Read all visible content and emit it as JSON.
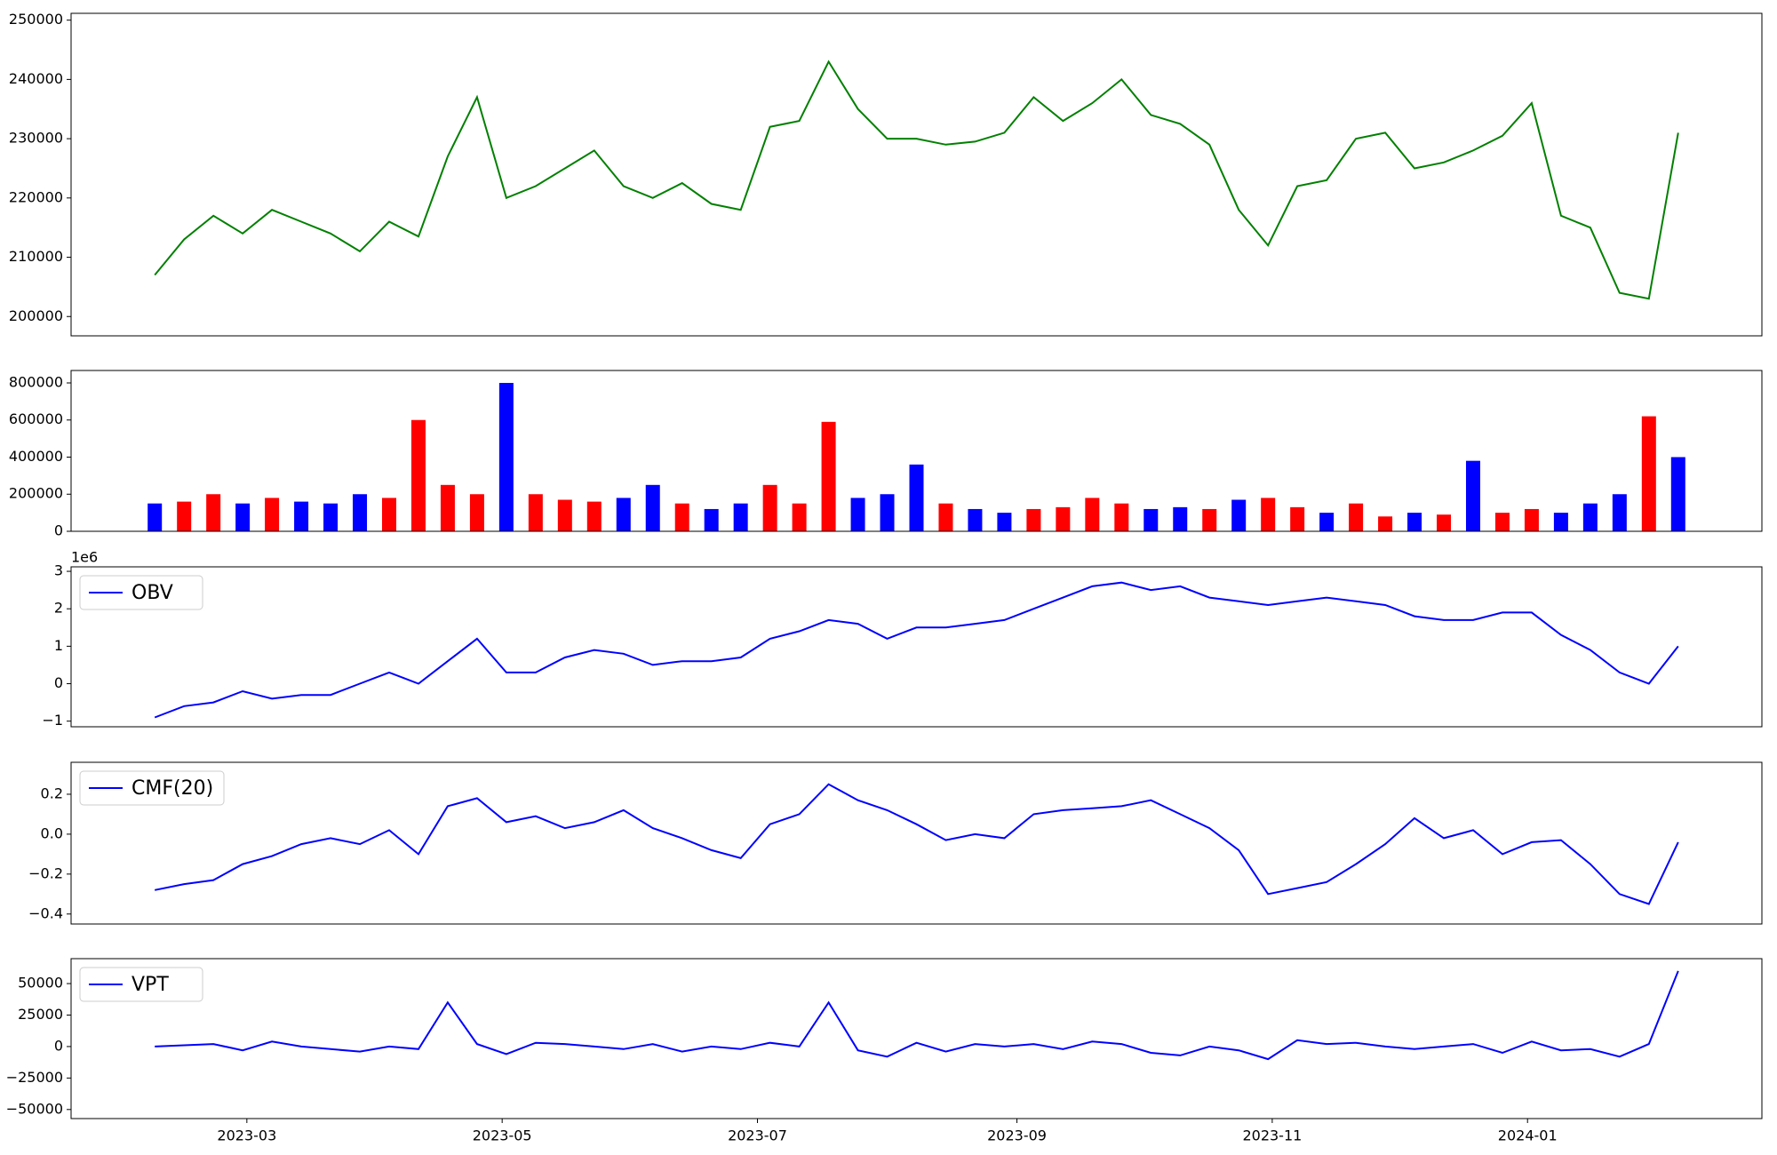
{
  "chart_data": [
    {
      "type": "line",
      "xlim": [
        "2023-01-18",
        "2024-02-26"
      ],
      "ylim": [
        196740,
        251150
      ],
      "yticks": [
        200000,
        210000,
        220000,
        230000,
        240000,
        250000
      ],
      "x": [
        "2023-02-07",
        "2023-02-14",
        "2023-02-21",
        "2023-02-28",
        "2023-03-07",
        "2023-03-14",
        "2023-03-21",
        "2023-03-28",
        "2023-04-04",
        "2023-04-11",
        "2023-04-18",
        "2023-04-25",
        "2023-05-02",
        "2023-05-09",
        "2023-05-16",
        "2023-05-23",
        "2023-05-30",
        "2023-06-06",
        "2023-06-13",
        "2023-06-20",
        "2023-06-27",
        "2023-07-04",
        "2023-07-11",
        "2023-07-18",
        "2023-07-25",
        "2023-08-01",
        "2023-08-08",
        "2023-08-15",
        "2023-08-22",
        "2023-08-29",
        "2023-09-05",
        "2023-09-12",
        "2023-09-19",
        "2023-09-26",
        "2023-10-03",
        "2023-10-10",
        "2023-10-17",
        "2023-10-24",
        "2023-10-31",
        "2023-11-07",
        "2023-11-14",
        "2023-11-21",
        "2023-11-28",
        "2023-12-05",
        "2023-12-12",
        "2023-12-19",
        "2023-12-26",
        "2024-01-02",
        "2024-01-09",
        "2024-01-16",
        "2024-01-23",
        "2024-01-30",
        "2024-02-06"
      ],
      "series": [
        {
          "color": "#008000",
          "values": [
            207000,
            213000,
            217000,
            214000,
            218000,
            216000,
            214000,
            211000,
            216000,
            213500,
            227000,
            237000,
            220000,
            222000,
            225000,
            228000,
            222000,
            220000,
            222500,
            219000,
            218000,
            232000,
            233000,
            243000,
            235000,
            230000,
            230000,
            229000,
            229500,
            231000,
            237000,
            233000,
            236000,
            240000,
            234000,
            232500,
            229000,
            218000,
            212000,
            222000,
            223000,
            230000,
            231000,
            225000,
            226000,
            228000,
            230500,
            236000,
            217000,
            215000,
            204000,
            203000,
            231000
          ]
        }
      ]
    },
    {
      "type": "bar",
      "xlim": [
        "2023-01-18",
        "2024-02-26"
      ],
      "ylim": [
        0,
        867000
      ],
      "yticks": [
        0,
        200000,
        400000,
        600000,
        800000
      ],
      "x": [
        "2023-02-07",
        "2023-02-14",
        "2023-02-21",
        "2023-02-28",
        "2023-03-07",
        "2023-03-14",
        "2023-03-21",
        "2023-03-28",
        "2023-04-04",
        "2023-04-11",
        "2023-04-18",
        "2023-04-25",
        "2023-05-02",
        "2023-05-09",
        "2023-05-16",
        "2023-05-23",
        "2023-05-30",
        "2023-06-06",
        "2023-06-13",
        "2023-06-20",
        "2023-06-27",
        "2023-07-04",
        "2023-07-11",
        "2023-07-18",
        "2023-07-25",
        "2023-08-01",
        "2023-08-08",
        "2023-08-15",
        "2023-08-22",
        "2023-08-29",
        "2023-09-05",
        "2023-09-12",
        "2023-09-19",
        "2023-09-26",
        "2023-10-03",
        "2023-10-10",
        "2023-10-17",
        "2023-10-24",
        "2023-10-31",
        "2023-11-07",
        "2023-11-14",
        "2023-11-21",
        "2023-11-28",
        "2023-12-05",
        "2023-12-12",
        "2023-12-19",
        "2023-12-26",
        "2024-01-02",
        "2024-01-09",
        "2024-01-16",
        "2024-01-23",
        "2024-01-30",
        "2024-02-06"
      ],
      "values": [
        150000,
        160000,
        200000,
        150000,
        180000,
        160000,
        150000,
        200000,
        180000,
        600000,
        250000,
        200000,
        800000,
        200000,
        170000,
        160000,
        180000,
        250000,
        150000,
        120000,
        150000,
        250000,
        150000,
        590000,
        180000,
        200000,
        360000,
        150000,
        120000,
        100000,
        120000,
        130000,
        180000,
        150000,
        120000,
        130000,
        120000,
        170000,
        180000,
        130000,
        100000,
        150000,
        80000,
        100000,
        90000,
        380000,
        100000,
        120000,
        100000,
        150000,
        200000,
        620000,
        400000
      ],
      "bar_colors": [
        "#0000ff",
        "#ff0000",
        "#ff0000",
        "#0000ff",
        "#ff0000",
        "#0000ff",
        "#0000ff",
        "#0000ff",
        "#ff0000",
        "#ff0000",
        "#ff0000",
        "#ff0000",
        "#0000ff",
        "#ff0000",
        "#ff0000",
        "#ff0000",
        "#0000ff",
        "#0000ff",
        "#ff0000",
        "#0000ff",
        "#0000ff",
        "#ff0000",
        "#ff0000",
        "#ff0000",
        "#0000ff",
        "#0000ff",
        "#0000ff",
        "#ff0000",
        "#0000ff",
        "#0000ff",
        "#ff0000",
        "#ff0000",
        "#ff0000",
        "#ff0000",
        "#0000ff",
        "#0000ff",
        "#ff0000",
        "#0000ff",
        "#ff0000",
        "#ff0000",
        "#0000ff",
        "#ff0000",
        "#ff0000",
        "#0000ff",
        "#ff0000",
        "#0000ff",
        "#ff0000",
        "#ff0000",
        "#0000ff",
        "#0000ff",
        "#0000ff",
        "#ff0000",
        "#0000ff"
      ]
    },
    {
      "type": "line",
      "xlim": [
        "2023-01-18",
        "2024-02-26"
      ],
      "ylim": [
        -1150000,
        3120000
      ],
      "y_offset_label": "1e6",
      "legend": "upper left",
      "yticks": [
        {
          "value": -1000000,
          "label": "−1"
        },
        {
          "value": 0,
          "label": "0"
        },
        {
          "value": 1000000,
          "label": "1"
        },
        {
          "value": 2000000,
          "label": "2"
        },
        {
          "value": 3000000,
          "label": "3"
        }
      ],
      "x": [
        "2023-02-07",
        "2023-02-14",
        "2023-02-21",
        "2023-02-28",
        "2023-03-07",
        "2023-03-14",
        "2023-03-21",
        "2023-03-28",
        "2023-04-04",
        "2023-04-11",
        "2023-04-18",
        "2023-04-25",
        "2023-05-02",
        "2023-05-09",
        "2023-05-16",
        "2023-05-23",
        "2023-05-30",
        "2023-06-06",
        "2023-06-13",
        "2023-06-20",
        "2023-06-27",
        "2023-07-04",
        "2023-07-11",
        "2023-07-18",
        "2023-07-25",
        "2023-08-01",
        "2023-08-08",
        "2023-08-15",
        "2023-08-22",
        "2023-08-29",
        "2023-09-05",
        "2023-09-12",
        "2023-09-19",
        "2023-09-26",
        "2023-10-03",
        "2023-10-10",
        "2023-10-17",
        "2023-10-24",
        "2023-10-31",
        "2023-11-07",
        "2023-11-14",
        "2023-11-21",
        "2023-11-28",
        "2023-12-05",
        "2023-12-12",
        "2023-12-19",
        "2023-12-26",
        "2024-01-02",
        "2024-01-09",
        "2024-01-16",
        "2024-01-23",
        "2024-01-30",
        "2024-02-06"
      ],
      "series": [
        {
          "name": "OBV",
          "color": "#0000ff",
          "values": [
            -900000,
            -600000,
            -500000,
            -200000,
            -400000,
            -300000,
            -300000,
            0,
            300000,
            0,
            600000,
            1200000,
            300000,
            300000,
            700000,
            900000,
            800000,
            500000,
            600000,
            600000,
            700000,
            1200000,
            1400000,
            1700000,
            1600000,
            1200000,
            1500000,
            1500000,
            1600000,
            1700000,
            2000000,
            2300000,
            2600000,
            2700000,
            2500000,
            2600000,
            2300000,
            2200000,
            2100000,
            2200000,
            2300000,
            2200000,
            2100000,
            1800000,
            1700000,
            1700000,
            1900000,
            1900000,
            1300000,
            900000,
            300000,
            0,
            1000000
          ]
        }
      ]
    },
    {
      "type": "line",
      "xlim": [
        "2023-01-18",
        "2024-02-26"
      ],
      "ylim": [
        -0.45,
        0.36
      ],
      "legend": "upper left",
      "yticks": [
        {
          "value": -0.4,
          "label": "−0.4"
        },
        {
          "value": -0.2,
          "label": "−0.2"
        },
        {
          "value": 0,
          "label": "0.0"
        },
        0.2
      ],
      "x": [
        "2023-02-07",
        "2023-02-14",
        "2023-02-21",
        "2023-02-28",
        "2023-03-07",
        "2023-03-14",
        "2023-03-21",
        "2023-03-28",
        "2023-04-04",
        "2023-04-11",
        "2023-04-18",
        "2023-04-25",
        "2023-05-02",
        "2023-05-09",
        "2023-05-16",
        "2023-05-23",
        "2023-05-30",
        "2023-06-06",
        "2023-06-13",
        "2023-06-20",
        "2023-06-27",
        "2023-07-04",
        "2023-07-11",
        "2023-07-18",
        "2023-07-25",
        "2023-08-01",
        "2023-08-08",
        "2023-08-15",
        "2023-08-22",
        "2023-08-29",
        "2023-09-05",
        "2023-09-12",
        "2023-09-19",
        "2023-09-26",
        "2023-10-03",
        "2023-10-10",
        "2023-10-17",
        "2023-10-24",
        "2023-10-31",
        "2023-11-07",
        "2023-11-14",
        "2023-11-21",
        "2023-11-28",
        "2023-12-05",
        "2023-12-12",
        "2023-12-19",
        "2023-12-26",
        "2024-01-02",
        "2024-01-09",
        "2024-01-16",
        "2024-01-23",
        "2024-01-30",
        "2024-02-06"
      ],
      "series": [
        {
          "name": "CMF(20)",
          "color": "#0000ff",
          "values": [
            -0.28,
            -0.25,
            -0.23,
            -0.15,
            -0.11,
            -0.05,
            -0.02,
            -0.05,
            0.02,
            -0.1,
            0.14,
            0.18,
            0.06,
            0.09,
            0.03,
            0.06,
            0.12,
            0.03,
            -0.02,
            -0.08,
            -0.12,
            0.05,
            0.1,
            0.25,
            0.17,
            0.12,
            0.05,
            -0.03,
            0,
            -0.02,
            0.1,
            0.12,
            0.13,
            0.14,
            0.17,
            0.1,
            0.03,
            -0.08,
            -0.3,
            -0.27,
            -0.24,
            -0.15,
            -0.05,
            0.08,
            -0.02,
            0.02,
            -0.1,
            -0.04,
            -0.03,
            -0.15,
            -0.3,
            -0.35,
            -0.04
          ]
        }
      ]
    },
    {
      "type": "line",
      "xlim": [
        "2023-01-18",
        "2024-02-26"
      ],
      "ylim": [
        -57200,
        69800
      ],
      "legend": "upper left",
      "yticks": [
        {
          "value": -50000,
          "label": "−50000"
        },
        {
          "value": -25000,
          "label": "−25000"
        },
        0,
        25000,
        50000
      ],
      "xticks": [
        {
          "value": "2023-03-01",
          "label": "2023-03"
        },
        {
          "value": "2023-05-01",
          "label": "2023-05"
        },
        {
          "value": "2023-07-01",
          "label": "2023-07"
        },
        {
          "value": "2023-09-01",
          "label": "2023-09"
        },
        {
          "value": "2023-11-01",
          "label": "2023-11"
        },
        {
          "value": "2024-01-01",
          "label": "2024-01"
        }
      ],
      "x": [
        "2023-02-07",
        "2023-02-14",
        "2023-02-21",
        "2023-02-28",
        "2023-03-07",
        "2023-03-14",
        "2023-03-21",
        "2023-03-28",
        "2023-04-04",
        "2023-04-11",
        "2023-04-18",
        "2023-04-25",
        "2023-05-02",
        "2023-05-09",
        "2023-05-16",
        "2023-05-23",
        "2023-05-30",
        "2023-06-06",
        "2023-06-13",
        "2023-06-20",
        "2023-06-27",
        "2023-07-04",
        "2023-07-11",
        "2023-07-18",
        "2023-07-25",
        "2023-08-01",
        "2023-08-08",
        "2023-08-15",
        "2023-08-22",
        "2023-08-29",
        "2023-09-05",
        "2023-09-12",
        "2023-09-19",
        "2023-09-26",
        "2023-10-03",
        "2023-10-10",
        "2023-10-17",
        "2023-10-24",
        "2023-10-31",
        "2023-11-07",
        "2023-11-14",
        "2023-11-21",
        "2023-11-28",
        "2023-12-05",
        "2023-12-12",
        "2023-12-19",
        "2023-12-26",
        "2024-01-02",
        "2024-01-09",
        "2024-01-16",
        "2024-01-23",
        "2024-01-30",
        "2024-02-06"
      ],
      "series": [
        {
          "name": "VPT",
          "color": "#0000ff",
          "values": [
            0,
            1000,
            2000,
            -3000,
            4000,
            0,
            -2000,
            -4000,
            0,
            -2000,
            35000,
            2000,
            -6000,
            3000,
            2000,
            0,
            -2000,
            2000,
            -4000,
            0,
            -2000,
            3000,
            0,
            35000,
            -3000,
            -8000,
            3000,
            -4000,
            2000,
            0,
            2000,
            -2000,
            4000,
            2000,
            -5000,
            -7000,
            0,
            -3000,
            -10000,
            5000,
            2000,
            3000,
            0,
            -2000,
            0,
            2000,
            -5000,
            4000,
            -3000,
            -2000,
            -8000,
            2000,
            60000
          ]
        }
      ]
    }
  ]
}
